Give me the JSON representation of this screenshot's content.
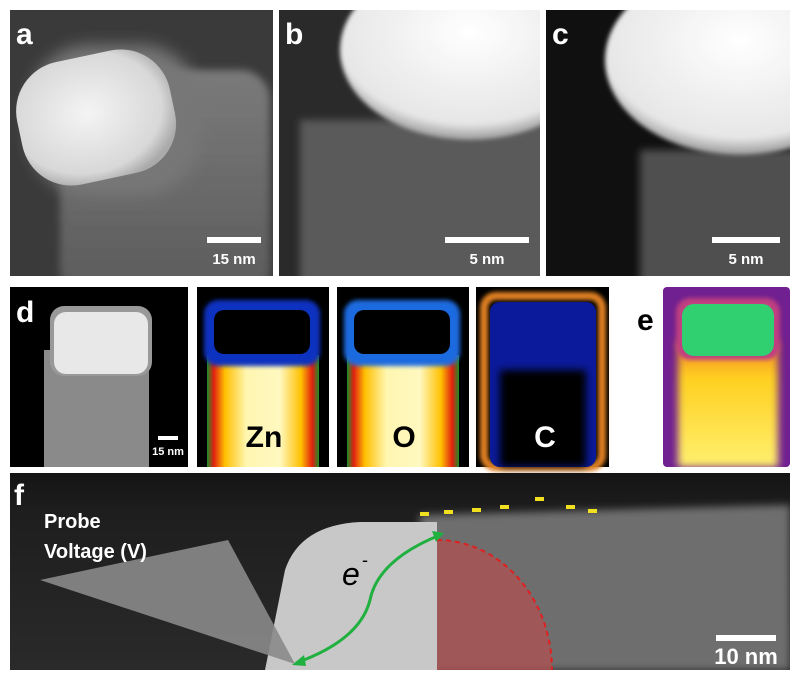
{
  "panels": {
    "a": {
      "label": "a",
      "scale_bar": "15 nm"
    },
    "b": {
      "label": "b",
      "scale_bar": "5 nm"
    },
    "c": {
      "label": "c",
      "scale_bar": "5 nm"
    },
    "d": {
      "label": "d",
      "scale_bar": "15 nm",
      "maps": [
        "Zn",
        "O",
        "C"
      ]
    },
    "e": {
      "label": "e"
    },
    "f": {
      "label": "f",
      "probe_label": [
        "Probe",
        "Voltage (V)"
      ],
      "electron": "e",
      "electron_charge": "-",
      "scale_bar": "10 nm"
    }
  }
}
